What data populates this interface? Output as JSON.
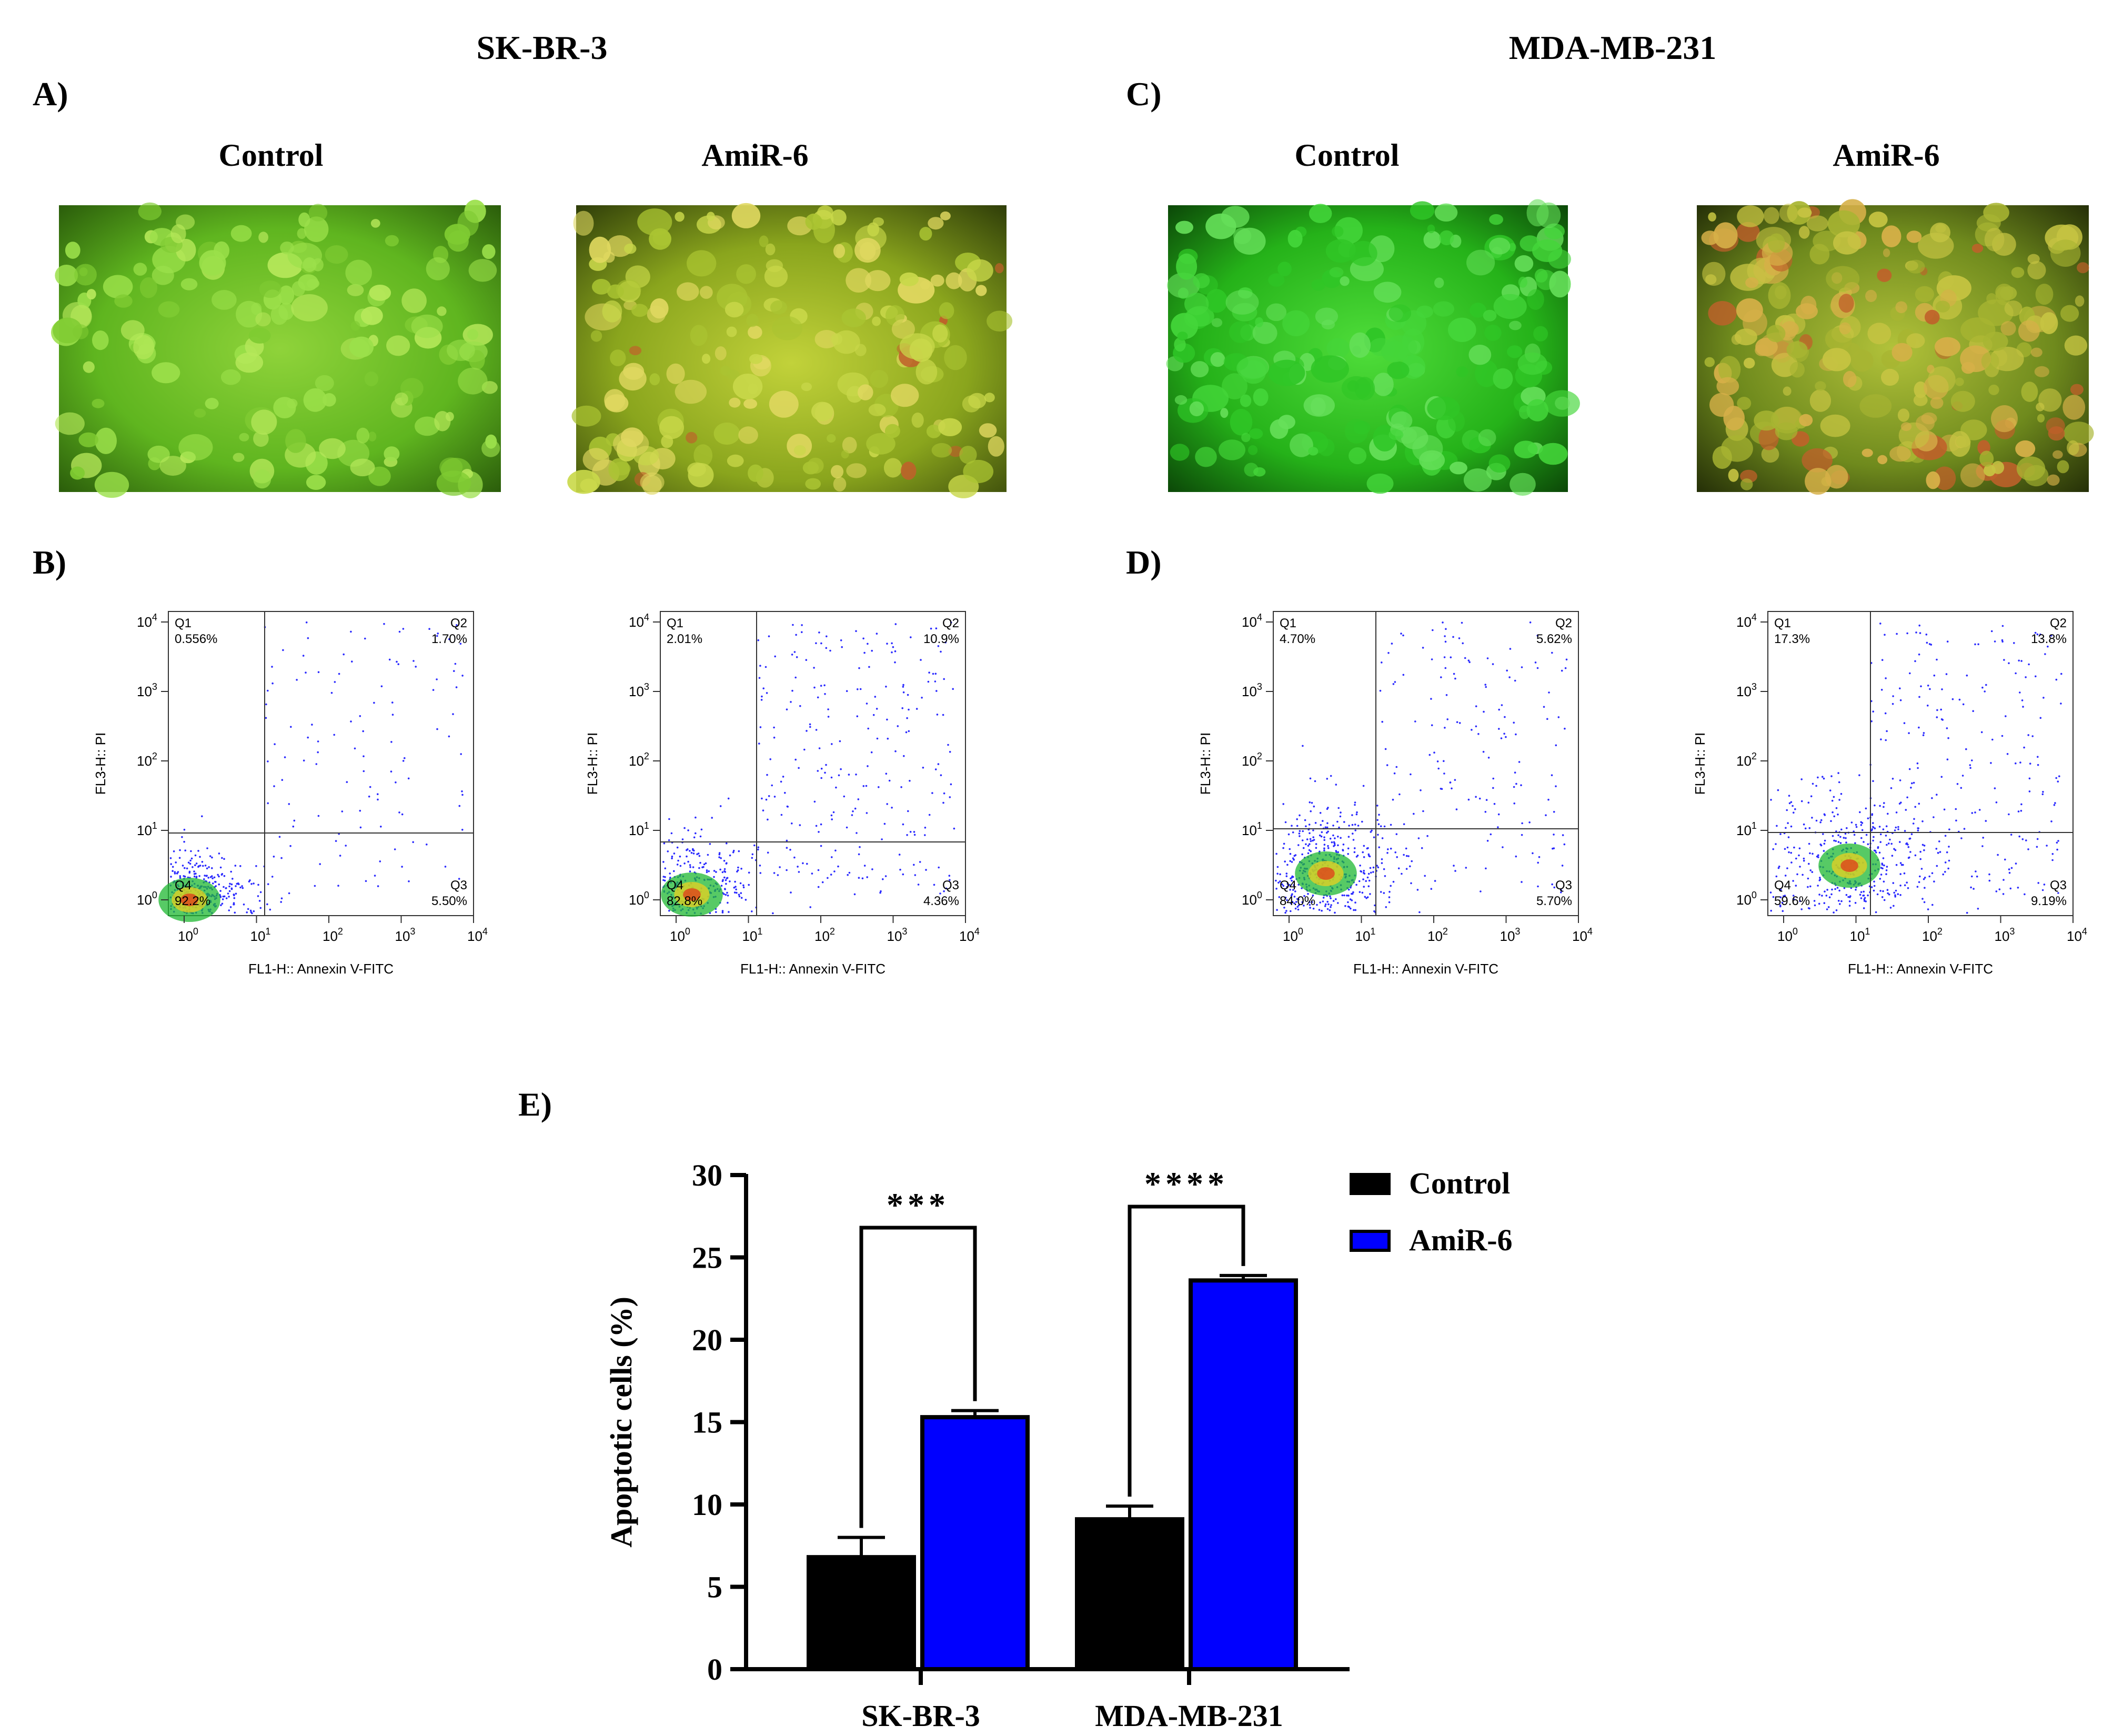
{
  "cell_lines": {
    "left_title": "SK-BR-3",
    "right_title": "MDA-MB-231"
  },
  "panel_labels": {
    "A": "A)",
    "B": "B)",
    "C": "C)",
    "D": "D)",
    "E": "E)"
  },
  "fluorescence_panels": [
    {
      "condition": "Control",
      "cell_line": "SK-BR-3"
    },
    {
      "condition": "AmiR-6",
      "cell_line": "SK-BR-3"
    },
    {
      "condition": "Control",
      "cell_line": "MDA-MB-231"
    },
    {
      "condition": "AmiR-6",
      "cell_line": "MDA-MB-231"
    }
  ],
  "flow_common": {
    "xlabel": "FL1-H:: Annexin V-FITC",
    "ylabel": "FL3-H:: PI",
    "quadrant_names": [
      "Q1",
      "Q2",
      "Q3",
      "Q4"
    ]
  },
  "flow_plots": [
    {
      "id": "sk-control",
      "q1": "0.556%",
      "q2": "1.70%",
      "q3": "5.50%",
      "q4": "92.2%"
    },
    {
      "id": "sk-amir6",
      "q1": "2.01%",
      "q2": "10.9%",
      "q3": "4.36%",
      "q4": "82.8%"
    },
    {
      "id": "mda-control",
      "q1": "4.70%",
      "q2": "5.62%",
      "q3": "5.70%",
      "q4": "84.0%"
    },
    {
      "id": "mda-amir6",
      "q1": "17.3%",
      "q2": "13.8%",
      "q3": "9.19%",
      "q4": "59.6%"
    }
  ],
  "chart_data": {
    "type": "bar",
    "title": "",
    "xlabel": "",
    "ylabel": "Apoptotic cells (%)",
    "ylim": [
      0,
      30
    ],
    "yticks": [
      0,
      5,
      10,
      15,
      20,
      25,
      30
    ],
    "categories": [
      "SK-BR-3",
      "MDA-MB-231"
    ],
    "series": [
      {
        "name": "Control",
        "color": "#000000",
        "values": [
          6.8,
          9.1
        ],
        "errors": [
          1.2,
          0.8
        ]
      },
      {
        "name": "AmiR-6",
        "color": "#0000ff",
        "values": [
          15.3,
          23.6
        ],
        "errors": [
          0.4,
          0.3
        ]
      }
    ],
    "significance": [
      "***",
      "****"
    ],
    "legend_position": "top-right"
  }
}
